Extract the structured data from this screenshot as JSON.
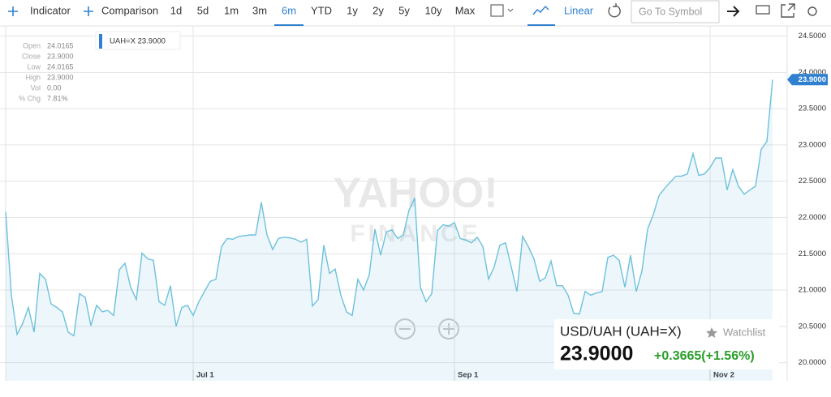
{
  "toolbar": {
    "indicator": "Indicator",
    "comparison": "Comparison",
    "ranges": [
      "1d",
      "5d",
      "1m",
      "3m",
      "6m",
      "YTD",
      "1y",
      "2y",
      "5y",
      "10y",
      "Max"
    ],
    "active_range": "6m",
    "scale": "Linear",
    "search_placeholder": "Go To Symbol"
  },
  "ohlc": {
    "labels": [
      "Open",
      "Close",
      "Low",
      "High",
      "Vol",
      "% Chg"
    ],
    "values": [
      "24.0165",
      "23.9000",
      "24.0165",
      "23.9000",
      "0.00",
      "7.81%"
    ]
  },
  "quote": {
    "name": "USD/UAH (UAH=X)",
    "watchlist": "Watchlist",
    "price": "23.9000",
    "change": "+0.3665(+1.56%)"
  },
  "watermark": [
    "YAHOO!",
    "FINANCE"
  ],
  "chart_data": {
    "type": "area",
    "legend_label": "UAH=X 23.9000",
    "last_label": "23.9000",
    "color": "#6cc1dc",
    "categories": [
      null,
      null,
      null,
      null,
      null,
      null,
      null,
      null,
      null,
      null,
      null,
      null,
      null,
      null,
      null,
      null,
      null,
      null,
      null,
      null,
      null,
      null,
      null,
      null,
      null,
      null,
      null,
      null,
      null,
      null,
      null,
      null,
      null,
      "Jul 1",
      null,
      null,
      null,
      null,
      null,
      null,
      null,
      null,
      null,
      null,
      null,
      null,
      null,
      null,
      null,
      null,
      null,
      null,
      null,
      null,
      null,
      null,
      null,
      null,
      null,
      null,
      null,
      null,
      null,
      null,
      null,
      null,
      null,
      null,
      null,
      null,
      null,
      null,
      null,
      null,
      null,
      null,
      null,
      null,
      null,
      "Sep 1",
      null,
      null,
      null,
      null,
      null,
      null,
      null,
      null,
      null,
      null,
      null,
      null,
      null,
      null,
      null,
      null,
      null,
      null,
      null,
      null,
      null,
      null,
      null,
      null,
      null,
      null,
      null,
      null,
      null,
      null,
      null,
      null,
      null,
      null,
      null,
      null,
      null,
      null,
      null,
      null,
      null,
      null,
      null,
      null,
      "Nov 2",
      null,
      null,
      null,
      null,
      null,
      null,
      null,
      null,
      null,
      null,
      null
    ],
    "values": [
      22.08,
      20.93,
      20.39,
      20.54,
      20.76,
      20.42,
      21.23,
      21.15,
      20.81,
      20.76,
      20.7,
      20.42,
      20.37,
      20.95,
      20.9,
      20.51,
      20.79,
      20.7,
      20.72,
      20.65,
      21.28,
      21.37,
      21.04,
      20.87,
      21.51,
      21.43,
      21.41,
      20.84,
      20.79,
      21.06,
      20.5,
      20.76,
      20.79,
      20.65,
      20.84,
      20.98,
      21.12,
      21.15,
      21.6,
      21.71,
      21.7,
      21.74,
      21.75,
      21.76,
      21.76,
      22.21,
      21.76,
      21.56,
      21.71,
      21.73,
      21.72,
      21.7,
      21.66,
      21.7,
      20.78,
      20.87,
      21.62,
      21.23,
      21.29,
      20.93,
      20.7,
      20.65,
      21.15,
      21.0,
      21.21,
      21.84,
      21.48,
      21.8,
      21.83,
      21.71,
      21.76,
      22.1,
      22.27,
      21.04,
      20.84,
      20.95,
      21.82,
      21.9,
      21.88,
      21.93,
      21.71,
      21.69,
      21.65,
      21.73,
      21.6,
      21.15,
      21.32,
      21.62,
      21.65,
      21.32,
      20.98,
      21.74,
      21.6,
      21.43,
      21.12,
      21.17,
      21.4,
      21.06,
      21.06,
      20.93,
      20.68,
      20.67,
      20.98,
      20.93,
      20.96,
      20.98,
      21.45,
      21.48,
      21.41,
      21.04,
      21.48,
      20.98,
      21.26,
      21.84,
      22.04,
      22.3,
      22.4,
      22.49,
      22.57,
      22.57,
      22.6,
      22.88,
      22.58,
      22.6,
      22.69,
      22.82,
      22.82,
      22.38,
      22.66,
      22.43,
      22.32,
      22.38,
      22.43,
      22.94,
      23.05,
      23.9
    ],
    "ylim": [
      19.75,
      24.64
    ],
    "yticks": [
      {
        "value": 20,
        "label": "20.0000"
      },
      {
        "value": 20.5,
        "label": "20.5000"
      },
      {
        "value": 21,
        "label": "21.0000"
      },
      {
        "value": 21.5,
        "label": "21.5000"
      },
      {
        "value": 22,
        "label": "22.0000"
      },
      {
        "value": 22.5,
        "label": "22.5000"
      },
      {
        "value": 23,
        "label": "23.0000"
      },
      {
        "value": 23.5,
        "label": "23.5000"
      },
      {
        "value": 24,
        "label": "24.0000"
      },
      {
        "value": 24.5,
        "label": "24.5000"
      }
    ],
    "grid": true
  }
}
